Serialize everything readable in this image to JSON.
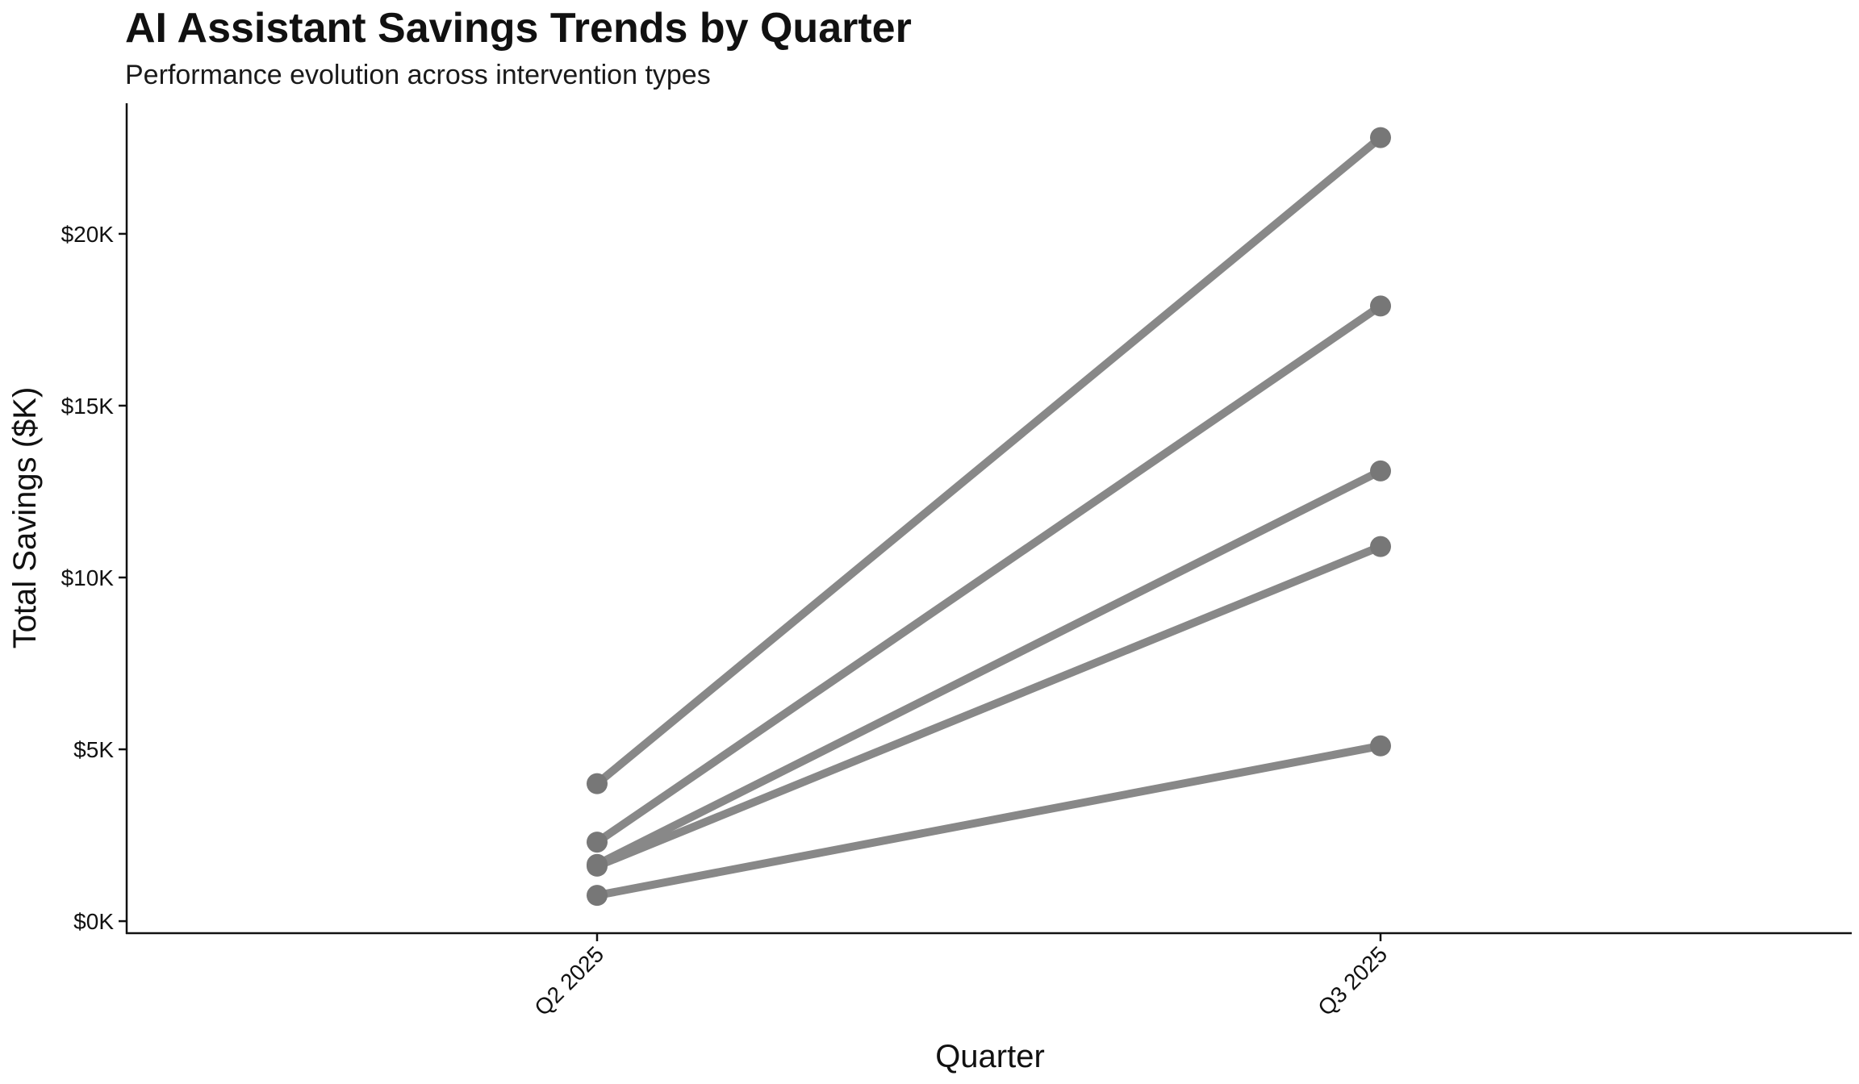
{
  "chart_data": {
    "type": "line",
    "title": "AI Assistant Savings Trends by Quarter",
    "subtitle": "Performance evolution across intervention types",
    "xlabel": "Quarter",
    "ylabel": "Total Savings ($K)",
    "categories": [
      "Q2 2025",
      "Q3 2025"
    ],
    "series": [
      {
        "values": [
          4000,
          22800
        ]
      },
      {
        "values": [
          2300,
          17900
        ]
      },
      {
        "values": [
          1650,
          13100
        ]
      },
      {
        "values": [
          1600,
          10900
        ]
      },
      {
        "values": [
          750,
          5100
        ]
      }
    ],
    "ylim": [
      -350,
      23800
    ],
    "yticks": [
      0,
      5000,
      10000,
      15000,
      20000
    ],
    "ytick_labels": [
      "$0K",
      "$5K",
      "$10K",
      "$15K",
      "$20K"
    ],
    "grid": false,
    "legend": "none",
    "colors": {
      "line": "#888888",
      "point": "#777777"
    }
  }
}
